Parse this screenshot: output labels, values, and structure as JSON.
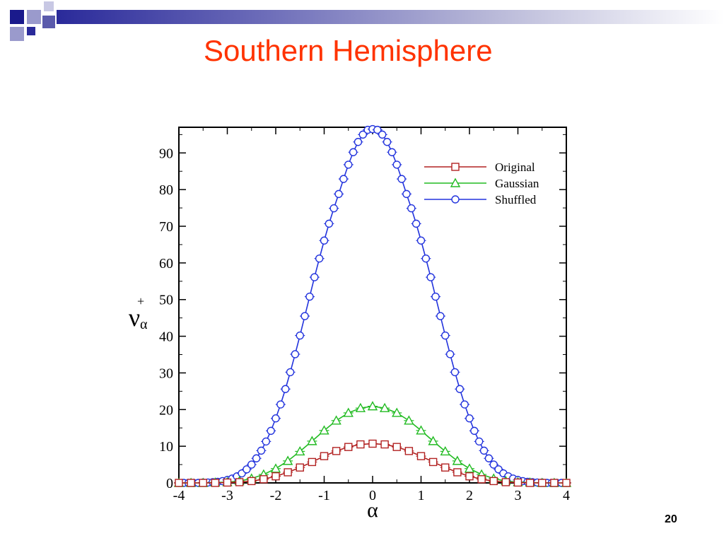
{
  "slide": {
    "title": "Southern Hemisphere",
    "page_number": "20"
  },
  "colors": {
    "title": "#ff3300",
    "original": "#b22222",
    "gaussian": "#22bb22",
    "shuffled": "#2233dd"
  },
  "chart_data": {
    "type": "line",
    "title": "",
    "xlabel": "α",
    "ylabel": "ν",
    "ylabel_superscript": "+",
    "ylabel_subscript": "α",
    "xlim": [
      -4,
      4
    ],
    "ylim": [
      0,
      97
    ],
    "xticks": [
      -4,
      -3,
      -2,
      -1,
      0,
      1,
      2,
      3,
      4
    ],
    "yticks": [
      0,
      10,
      20,
      30,
      40,
      50,
      60,
      70,
      80,
      90
    ],
    "grid": false,
    "legend_position": "top-right",
    "series": [
      {
        "name": "Original",
        "marker": "square",
        "x": [
          -4,
          -3.75,
          -3.5,
          -3.25,
          -3,
          -2.75,
          -2.5,
          -2.25,
          -2,
          -1.75,
          -1.5,
          -1.25,
          -1,
          -0.75,
          -0.5,
          -0.25,
          0,
          0.25,
          0.5,
          0.75,
          1,
          1.25,
          1.5,
          1.75,
          2,
          2.25,
          2.5,
          2.75,
          3,
          3.25,
          3.5,
          3.75,
          4
        ],
        "y": [
          0,
          0,
          0,
          0,
          0.1,
          0.2,
          0.5,
          1.0,
          1.8,
          2.9,
          4.2,
          5.7,
          7.3,
          8.7,
          9.8,
          10.5,
          10.7,
          10.5,
          9.8,
          8.7,
          7.3,
          5.7,
          4.2,
          2.9,
          1.8,
          1.0,
          0.5,
          0.2,
          0.1,
          0,
          0,
          0,
          0
        ]
      },
      {
        "name": "Gaussian",
        "marker": "triangle",
        "x": [
          -4,
          -3.75,
          -3.5,
          -3.25,
          -3,
          -2.75,
          -2.5,
          -2.25,
          -2,
          -1.75,
          -1.5,
          -1.25,
          -1,
          -0.75,
          -0.5,
          -0.25,
          0,
          0.25,
          0.5,
          0.75,
          1,
          1.25,
          1.5,
          1.75,
          2,
          2.25,
          2.5,
          2.75,
          3,
          3.25,
          3.5,
          3.75,
          4
        ],
        "y": [
          0,
          0,
          0,
          0.1,
          0.2,
          0.5,
          1.2,
          2.3,
          3.9,
          6.0,
          8.6,
          11.4,
          14.3,
          17.0,
          19.1,
          20.4,
          20.9,
          20.4,
          19.1,
          17.0,
          14.3,
          11.4,
          8.6,
          6.0,
          3.9,
          2.3,
          1.2,
          0.5,
          0.2,
          0.1,
          0,
          0,
          0
        ]
      },
      {
        "name": "Shuffled",
        "marker": "circle",
        "x": [
          -4,
          -3.9,
          -3.8,
          -3.7,
          -3.6,
          -3.5,
          -3.4,
          -3.3,
          -3.2,
          -3.1,
          -3,
          -2.9,
          -2.8,
          -2.7,
          -2.6,
          -2.5,
          -2.4,
          -2.3,
          -2.2,
          -2.1,
          -2,
          -1.9,
          -1.8,
          -1.7,
          -1.6,
          -1.5,
          -1.4,
          -1.3,
          -1.2,
          -1.1,
          -1,
          -0.9,
          -0.8,
          -0.7,
          -0.6,
          -0.5,
          -0.4,
          -0.3,
          -0.2,
          -0.1,
          0,
          0.1,
          0.2,
          0.3,
          0.4,
          0.5,
          0.6,
          0.7,
          0.8,
          0.9,
          1,
          1.1,
          1.2,
          1.3,
          1.4,
          1.5,
          1.6,
          1.7,
          1.8,
          1.9,
          2,
          2.1,
          2.2,
          2.3,
          2.4,
          2.5,
          2.6,
          2.7,
          2.8,
          2.9,
          3,
          3.1,
          3.2,
          3.3,
          3.4,
          3.5,
          3.6,
          3.7,
          3.8,
          3.9,
          4
        ],
        "y": [
          0,
          0,
          0,
          0,
          0,
          0.1,
          0.1,
          0.2,
          0.3,
          0.5,
          0.8,
          1.2,
          1.8,
          2.6,
          3.7,
          5.0,
          6.7,
          8.8,
          11.3,
          14.2,
          17.6,
          21.4,
          25.6,
          30.2,
          35.1,
          40.2,
          45.5,
          50.8,
          56.1,
          61.2,
          66.1,
          70.7,
          74.9,
          78.8,
          82.9,
          86.8,
          90.2,
          93.0,
          95.0,
          96.3,
          96.5,
          96.3,
          95.0,
          93.0,
          90.2,
          86.8,
          82.9,
          78.8,
          74.9,
          70.7,
          66.1,
          61.2,
          56.1,
          50.8,
          45.5,
          40.2,
          35.1,
          30.2,
          25.6,
          21.4,
          17.6,
          14.2,
          11.3,
          8.8,
          6.7,
          5.0,
          3.7,
          2.6,
          1.8,
          1.2,
          0.8,
          0.5,
          0.3,
          0.2,
          0.1,
          0.1,
          0,
          0,
          0,
          0,
          0
        ]
      }
    ]
  }
}
